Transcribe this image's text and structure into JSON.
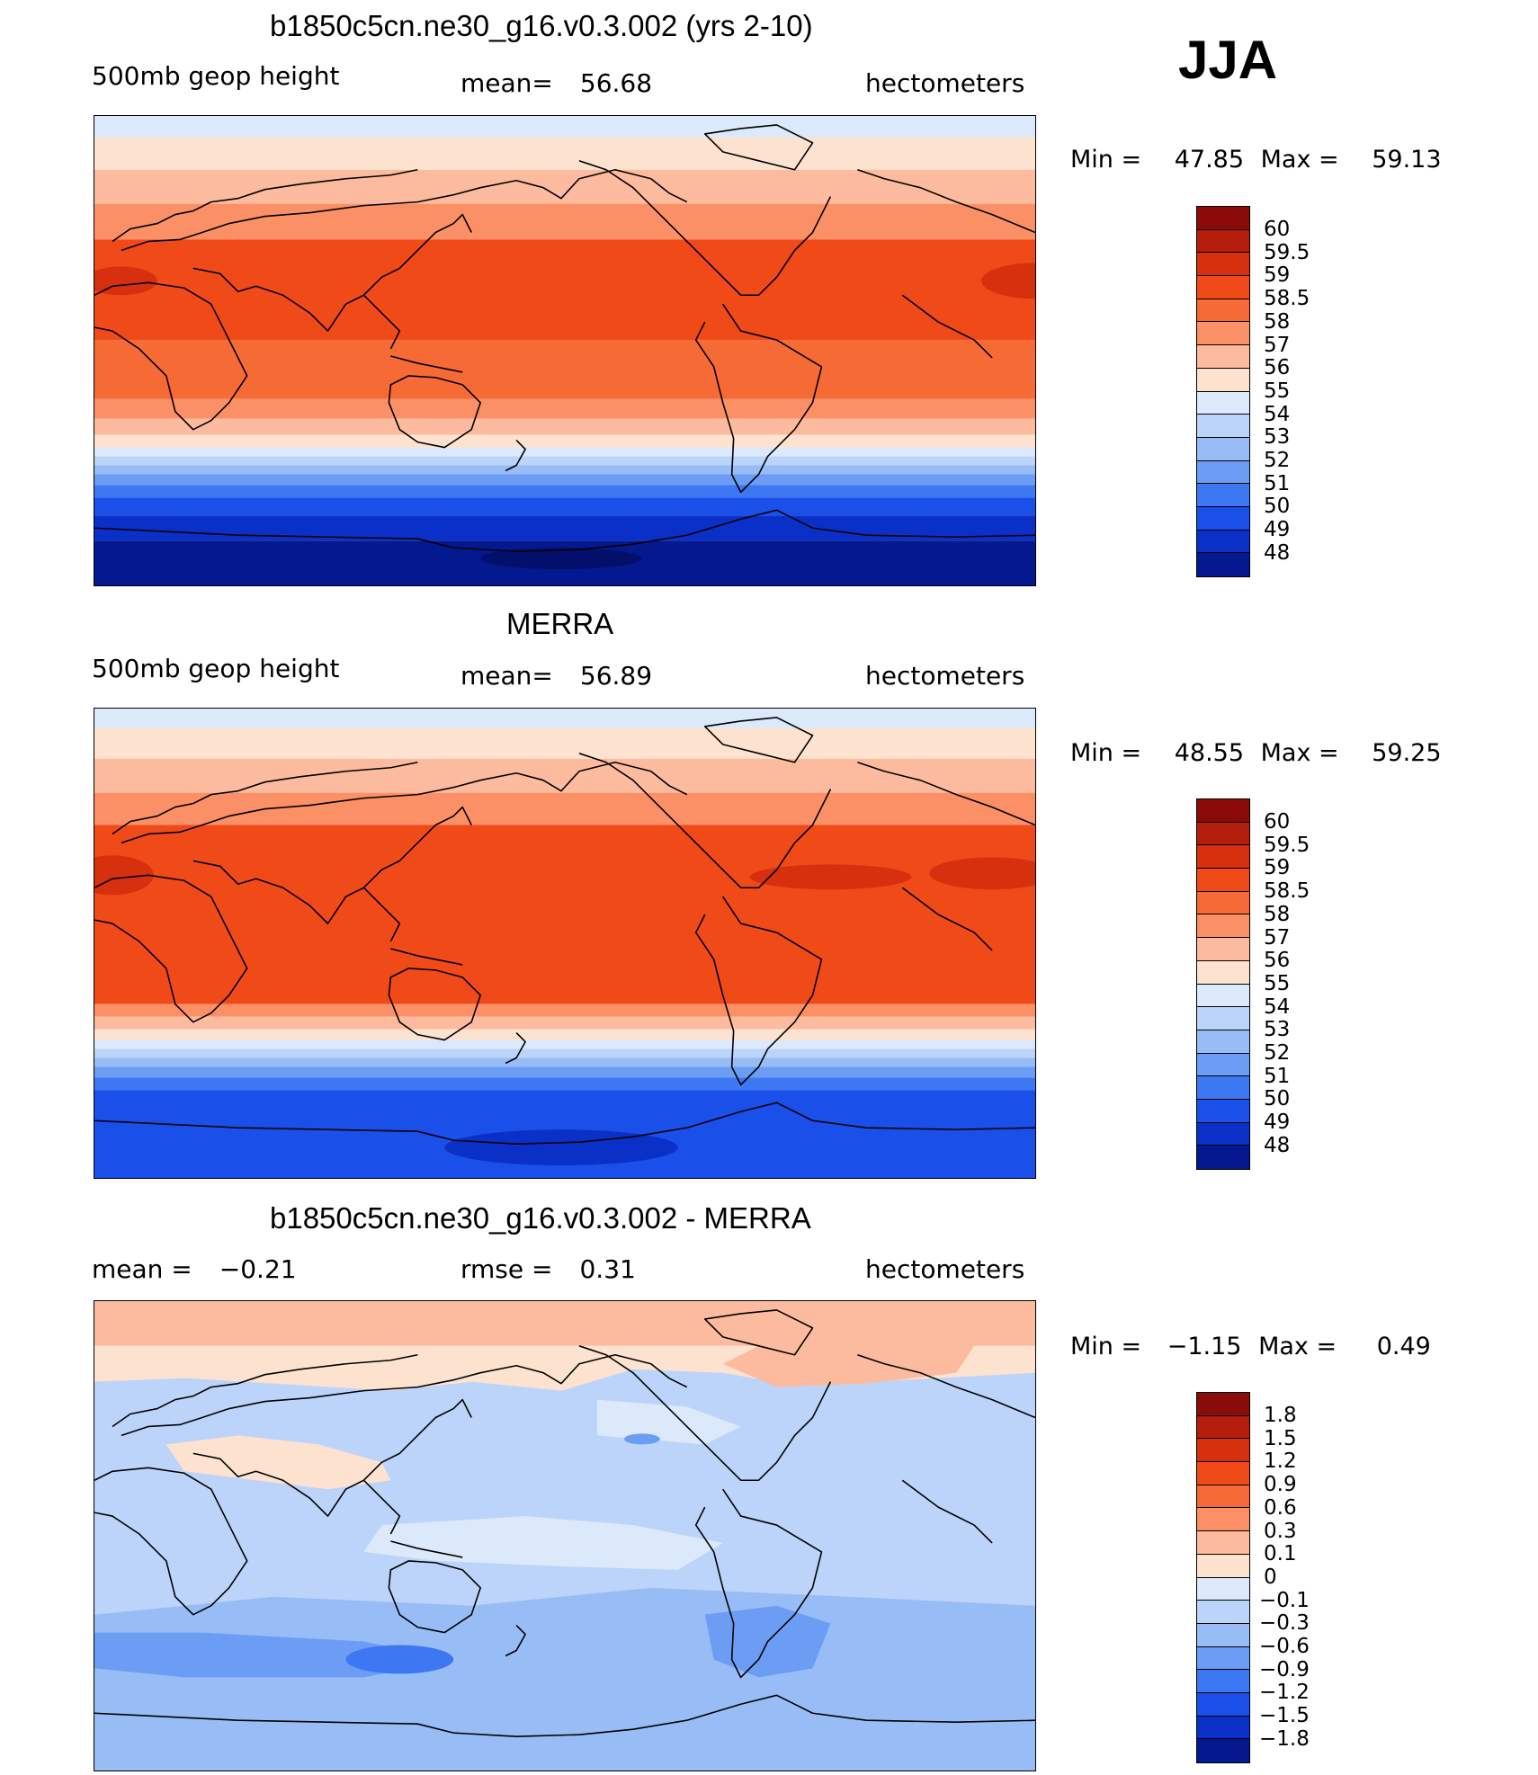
{
  "season": "JJA",
  "panels": [
    {
      "title": "b1850c5cn.ne30_g16.v0.3.002 (yrs 2-10)",
      "left_label": "500mb  geop  height",
      "center_label": "mean=",
      "center_value": "56.68",
      "right_label": "hectometers",
      "min_label": "Min  =",
      "min_value": "47.85",
      "max_label": "Max  =",
      "max_value": "59.13"
    },
    {
      "title": "MERRA",
      "left_label": "500mb  geop  height",
      "center_label": "mean=",
      "center_value": "56.89",
      "right_label": "hectometers",
      "min_label": "Min  =",
      "min_value": "48.55",
      "max_label": "Max  =",
      "max_value": "59.25"
    },
    {
      "title": "b1850c5cn.ne30_g16.v0.3.002 - MERRA",
      "left_label": "mean  =",
      "left_value": "−0.21",
      "center_label": "rmse  =",
      "center_value": "0.31",
      "right_label": "hectometers",
      "min_label": "Min  =",
      "min_value": "−1.15",
      "max_label": "Max  =",
      "max_value": "0.49"
    }
  ],
  "chart_data": [
    {
      "type": "heatmap",
      "title": "b1850c5cn.ne30_g16.v0.3.002 (yrs 2-10)",
      "variable": "500mb geop height",
      "units": "hectometers",
      "mean": 56.68,
      "min": 47.85,
      "max": 59.13,
      "levels": [
        "60",
        "59.5",
        "59",
        "58.5",
        "58",
        "57",
        "56",
        "55",
        "54",
        "53",
        "52",
        "51",
        "50",
        "49",
        "48"
      ],
      "colors": [
        "#8b0a0a",
        "#b51e0c",
        "#d6300f",
        "#f04a19",
        "#f66a35",
        "#fb9066",
        "#fcbb9f",
        "#fde3cf",
        "#dbe9fb",
        "#bcd4f9",
        "#98bcf6",
        "#6c9df4",
        "#3d77f2",
        "#1a4fea",
        "#0a30c8",
        "#04188f"
      ]
    },
    {
      "type": "heatmap",
      "title": "MERRA",
      "variable": "500mb geop height",
      "units": "hectometers",
      "mean": 56.89,
      "min": 48.55,
      "max": 59.25,
      "levels": [
        "60",
        "59.5",
        "59",
        "58.5",
        "58",
        "57",
        "56",
        "55",
        "54",
        "53",
        "52",
        "51",
        "50",
        "49",
        "48"
      ],
      "colors": [
        "#8b0a0a",
        "#b51e0c",
        "#d6300f",
        "#f04a19",
        "#f66a35",
        "#fb9066",
        "#fcbb9f",
        "#fde3cf",
        "#dbe9fb",
        "#bcd4f9",
        "#98bcf6",
        "#6c9df4",
        "#3d77f2",
        "#1a4fea",
        "#0a30c8",
        "#04188f"
      ]
    },
    {
      "type": "heatmap",
      "title": "b1850c5cn.ne30_g16.v0.3.002 - MERRA",
      "units": "hectometers",
      "mean": -0.21,
      "rmse": 0.31,
      "min": -1.15,
      "max": 0.49,
      "levels": [
        "1.8",
        "1.5",
        "1.2",
        "0.9",
        "0.6",
        "0.3",
        "0.1",
        "0",
        "−0.1",
        "−0.3",
        "−0.6",
        "−0.9",
        "−1.2",
        "−1.5",
        "−1.8"
      ],
      "colors": [
        "#8b0a0a",
        "#b51e0c",
        "#d6300f",
        "#f04a19",
        "#f66a35",
        "#fb9066",
        "#fcbb9f",
        "#fde3cf",
        "#dbe9fb",
        "#bcd4f9",
        "#98bcf6",
        "#6c9df4",
        "#3d77f2",
        "#1a4fea",
        "#0a30c8",
        "#04188f"
      ]
    }
  ]
}
